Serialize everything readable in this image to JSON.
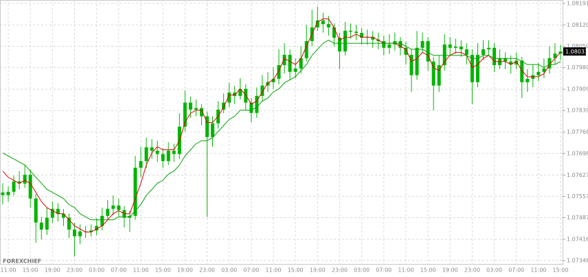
{
  "chart_data": {
    "type": "candlestick",
    "watermark": "FOREXCHIEF",
    "candle_color": "#00b400",
    "grid": true,
    "ylim": [
      1.07335,
      1.08202
    ],
    "yticks": [
      1.08191,
      {
        "value": 1.0812,
        "label": "1.08120"
      },
      {
        "value": 1.0805,
        "label": "1.08050"
      },
      {
        "value": 1.0798,
        "label": "1.07980"
      },
      1.07909,
      1.07839,
      1.07768,
      1.07698,
      1.07627,
      1.07557,
      1.07487,
      1.07416,
      1.07346
    ],
    "categories": [
      null,
      "11:00",
      null,
      null,
      null,
      "15:00",
      null,
      null,
      null,
      "19:00",
      null,
      null,
      null,
      "23:00",
      null,
      null,
      null,
      "03:00",
      null,
      null,
      null,
      "07:00",
      null,
      null,
      null,
      "11:00",
      null,
      null,
      null,
      "15:00",
      null,
      null,
      null,
      "19:00",
      null,
      null,
      null,
      "23:00",
      null,
      null,
      null,
      "03:00",
      null,
      null,
      null,
      "07:00",
      null,
      null,
      null,
      "11:00",
      null,
      null,
      null,
      "15:00",
      null,
      null,
      null,
      "19:00",
      null,
      null,
      null,
      "23:00",
      null,
      null,
      null,
      "03:00",
      null,
      null,
      null,
      "07:00",
      null,
      null,
      null,
      "11:00",
      null,
      null,
      null,
      "15:00",
      null,
      null,
      null,
      "19:00",
      null,
      null,
      null,
      "23:00",
      null,
      null,
      null,
      "03:00",
      null,
      null,
      null,
      "07:00",
      null,
      null,
      null,
      "11:00",
      null,
      null,
      null,
      "15:00"
    ],
    "open": [
      1.0757,
      1.07561,
      1.07572,
      1.07606,
      1.07599,
      1.07628,
      1.0755,
      1.07471,
      1.07448,
      1.07487,
      1.07516,
      1.075,
      1.07487,
      1.07448,
      1.07426,
      1.07442,
      1.0744,
      1.07445,
      1.0746,
      1.07493,
      1.07516,
      1.07527,
      1.07512,
      1.07487,
      1.07493,
      1.07651,
      1.07673,
      1.07718,
      1.07707,
      1.07696,
      1.07673,
      1.07707,
      1.07696,
      1.07786,
      1.07865,
      1.07842,
      1.07847,
      1.0782,
      1.07752,
      1.07797,
      1.07842,
      1.07865,
      1.07898,
      1.07887,
      1.0791,
      1.07865,
      1.07831,
      1.07887,
      1.07921,
      1.07932,
      1.07943,
      1.07988,
      1.08022,
      1.07966,
      1.07977,
      1.08011,
      1.08067,
      1.08112,
      1.08135,
      1.08123,
      1.08112,
      1.08078,
      1.08033,
      1.08101,
      1.08098,
      1.08094,
      1.08078,
      1.08081,
      1.08072,
      1.08067,
      1.08045,
      1.08056,
      1.08067,
      1.08045,
      1.08022,
      1.07955,
      1.08045,
      1.08067,
      1.08,
      1.07921,
      1.07988,
      1.08056,
      1.08045,
      1.08049,
      1.0804,
      1.08022,
      1.07932,
      1.08022,
      1.0804,
      1.08045,
      1.07988,
      1.08011,
      1.08,
      1.0799,
      1.08003,
      1.07932,
      1.07943,
      1.07955,
      1.07966,
      1.07977,
      1.08011,
      1.08026
    ],
    "high": [
      1.076,
      1.0759,
      1.07625,
      1.0764,
      1.0766,
      1.07645,
      1.07565,
      1.0749,
      1.0752,
      1.0754,
      1.07535,
      1.07515,
      1.075,
      1.0747,
      1.07465,
      1.0746,
      1.07465,
      1.07485,
      1.0752,
      1.07545,
      1.0756,
      1.0755,
      1.07525,
      1.0751,
      1.0769,
      1.0772,
      1.0775,
      1.07745,
      1.0774,
      1.07715,
      1.07735,
      1.0773,
      1.0783,
      1.07905,
      1.07885,
      1.07875,
      1.0786,
      1.07835,
      1.0782,
      1.0787,
      1.07895,
      1.0793,
      1.0792,
      1.07945,
      1.07925,
      1.0788,
      1.07915,
      1.07955,
      1.07965,
      1.0798,
      1.0804,
      1.0806,
      1.0804,
      1.0801,
      1.0805,
      1.0812,
      1.0817,
      1.0818,
      1.0816,
      1.0815,
      1.08125,
      1.08095,
      1.0813,
      1.08125,
      1.0812,
      1.0811,
      1.08105,
      1.081,
      1.08095,
      1.08085,
      1.0809,
      1.08095,
      1.0808,
      1.08065,
      1.0804,
      1.081,
      1.08095,
      1.0808,
      1.08015,
      1.0802,
      1.0809,
      1.0808,
      1.08075,
      1.0807,
      1.0806,
      1.0804,
      1.0806,
      1.0807,
      1.0807,
      1.0806,
      1.0804,
      1.0803,
      1.0802,
      1.0803,
      1.08015,
      1.07975,
      1.0799,
      1.07995,
      1.0801,
      1.0805,
      1.0806,
      1.08055
    ],
    "low": [
      1.0753,
      1.0754,
      1.0756,
      1.0758,
      1.07585,
      1.0752,
      1.07405,
      1.07415,
      1.0743,
      1.0747,
      1.07475,
      1.0746,
      1.0742,
      1.0736,
      1.074,
      1.0742,
      1.07425,
      1.0743,
      1.07445,
      1.0748,
      1.07495,
      1.0749,
      1.07455,
      1.0744,
      1.0748,
      1.0762,
      1.0765,
      1.0768,
      1.0767,
      1.0765,
      1.0766,
      1.0767,
      1.0768,
      1.0777,
      1.07815,
      1.0782,
      1.0779,
      1.0749,
      1.0772,
      1.0778,
      1.0783,
      1.0785,
      1.0786,
      1.07875,
      1.0784,
      1.078,
      1.07815,
      1.0787,
      1.079,
      1.0791,
      1.07925,
      1.0796,
      1.0794,
      1.07945,
      1.0796,
      1.08,
      1.0805,
      1.081,
      1.08095,
      1.08085,
      1.0805,
      1.07975,
      1.0802,
      1.08075,
      1.0807,
      1.08055,
      1.08055,
      1.08045,
      1.0804,
      1.0802,
      1.08025,
      1.08035,
      1.0802,
      1.0799,
      1.079,
      1.0794,
      1.0803,
      1.0797,
      1.0784,
      1.079,
      1.0797,
      1.0802,
      1.08025,
      1.08015,
      1.0799,
      1.0786,
      1.07915,
      1.08005,
      1.0802,
      1.07965,
      1.07975,
      1.07975,
      1.0796,
      1.07975,
      1.0788,
      1.079,
      1.07915,
      1.07935,
      1.07945,
      1.0796,
      1.0799,
      1.08005
    ],
    "close": [
      1.07561,
      1.07572,
      1.07606,
      1.07599,
      1.07628,
      1.0755,
      1.07471,
      1.07448,
      1.07487,
      1.07516,
      1.075,
      1.07487,
      1.07448,
      1.07426,
      1.07442,
      1.0744,
      1.07445,
      1.0746,
      1.07493,
      1.07516,
      1.07527,
      1.07512,
      1.07487,
      1.07493,
      1.07651,
      1.07673,
      1.07718,
      1.07707,
      1.07696,
      1.07673,
      1.07707,
      1.07696,
      1.07786,
      1.07865,
      1.07842,
      1.07847,
      1.0782,
      1.07752,
      1.07797,
      1.07842,
      1.07865,
      1.07898,
      1.07887,
      1.0791,
      1.07865,
      1.07831,
      1.07887,
      1.07921,
      1.07932,
      1.07943,
      1.07988,
      1.08022,
      1.07966,
      1.07977,
      1.08011,
      1.08067,
      1.08112,
      1.08135,
      1.08123,
      1.08112,
      1.08078,
      1.08033,
      1.08101,
      1.08098,
      1.08094,
      1.08078,
      1.08081,
      1.08072,
      1.08067,
      1.08045,
      1.08056,
      1.08067,
      1.08045,
      1.08022,
      1.07955,
      1.08045,
      1.08067,
      1.08,
      1.07921,
      1.07988,
      1.08056,
      1.08045,
      1.08049,
      1.0804,
      1.08022,
      1.07932,
      1.08022,
      1.0804,
      1.08045,
      1.07988,
      1.08011,
      1.08,
      1.0799,
      1.08003,
      1.07932,
      1.07943,
      1.07955,
      1.07966,
      1.07977,
      1.08011,
      1.08026,
      1.08033
    ],
    "overlays": [
      {
        "color": "#e00000",
        "values": [
          1.0764,
          1.0762,
          1.0761,
          1.076,
          1.0761,
          1.076,
          1.0757,
          1.0754,
          1.0752,
          1.0751,
          1.075,
          1.075,
          1.0748,
          1.0746,
          1.0745,
          1.0744,
          1.0744,
          1.0745,
          1.0746,
          1.0748,
          1.075,
          1.0751,
          1.075,
          1.075,
          1.0755,
          1.076,
          1.0766,
          1.077,
          1.0772,
          1.0771,
          1.0771,
          1.0771,
          1.0774,
          1.078,
          1.0783,
          1.0784,
          1.0784,
          1.078,
          1.078,
          1.0782,
          1.0785,
          1.0789,
          1.0789,
          1.0791,
          1.0789,
          1.0786,
          1.0787,
          1.079,
          1.0793,
          1.0794,
          1.0797,
          1.0801,
          1.08,
          1.0799,
          1.0801,
          1.0805,
          1.0809,
          1.0813,
          1.0814,
          1.0814,
          1.0811,
          1.0807,
          1.0808,
          1.0808,
          1.0809,
          1.0808,
          1.0808,
          1.0808,
          1.0807,
          1.0806,
          1.0806,
          1.0806,
          1.0805,
          1.0804,
          1.08,
          1.0801,
          1.0803,
          1.0802,
          1.0798,
          1.0797,
          1.08,
          1.0802,
          1.0803,
          1.0803,
          1.0802,
          1.0798,
          1.0799,
          1.0801,
          1.0802,
          1.08,
          1.08,
          1.08,
          1.0799,
          1.08,
          1.0797,
          1.0795,
          1.0795,
          1.0795,
          1.0796,
          1.0799,
          1.0801,
          1.0803
        ]
      },
      {
        "color": "#00a000",
        "values": [
          1.077,
          1.0769,
          1.0768,
          1.0767,
          1.0766,
          1.0764,
          1.0762,
          1.076,
          1.0758,
          1.0757,
          1.0756,
          1.0755,
          1.0753,
          1.0752,
          1.075,
          1.0749,
          1.0748,
          1.0748,
          1.0748,
          1.0748,
          1.0748,
          1.0749,
          1.0749,
          1.0749,
          1.0751,
          1.0753,
          1.0756,
          1.0758,
          1.076,
          1.0761,
          1.0763,
          1.0764,
          1.0766,
          1.0769,
          1.0771,
          1.0773,
          1.0774,
          1.0774,
          1.0775,
          1.0777,
          1.0779,
          1.0781,
          1.0782,
          1.0784,
          1.0784,
          1.0784,
          1.0785,
          1.0787,
          1.0788,
          1.079,
          1.0791,
          1.0793,
          1.0794,
          1.0795,
          1.0797,
          1.0799,
          1.0802,
          1.0804,
          1.0806,
          1.0807,
          1.0806,
          1.0806,
          1.0806,
          1.0806,
          1.0806,
          1.0806,
          1.0806,
          1.0806,
          1.0806,
          1.0806,
          1.0806,
          1.0806,
          1.0806,
          1.0805,
          1.0804,
          1.0804,
          1.0804,
          1.0803,
          1.0802,
          1.0802,
          1.0802,
          1.0802,
          1.0802,
          1.0802,
          1.0802,
          1.0801,
          1.0801,
          1.0802,
          1.0802,
          1.0801,
          1.0801,
          1.0801,
          1.0801,
          1.0801,
          1.08,
          1.0799,
          1.0799,
          1.0799,
          1.0798,
          1.0799,
          1.0799,
          1.08
        ]
      }
    ]
  }
}
